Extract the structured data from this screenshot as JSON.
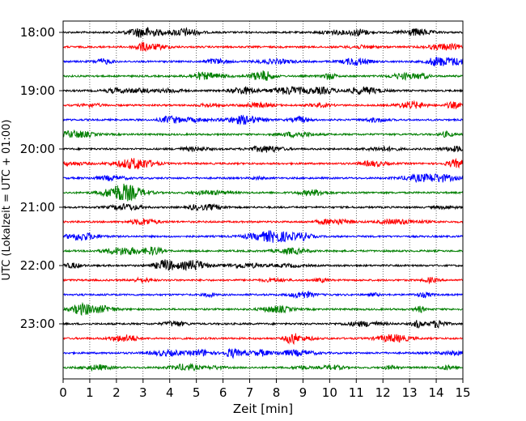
{
  "chart_data": {
    "type": "line",
    "xlabel": "Zeit  [min]",
    "ylabel": "UTC (Lokalzeit = UTC + 01:00)",
    "xlim": [
      0,
      15
    ],
    "x_ticks": [
      "0",
      "1",
      "2",
      "3",
      "4",
      "5",
      "6",
      "7",
      "8",
      "9",
      "10",
      "11",
      "12",
      "13",
      "14",
      "15"
    ],
    "y_tick_labels": [
      "18:00",
      "19:00",
      "20:00",
      "21:00",
      "22:00",
      "23:00"
    ],
    "traces_per_hour": 4,
    "trace_count": 24,
    "trace_colors": [
      "#000000",
      "#ff0000",
      "#0000ff",
      "#007f00"
    ],
    "vertical_grid": "dotted"
  }
}
